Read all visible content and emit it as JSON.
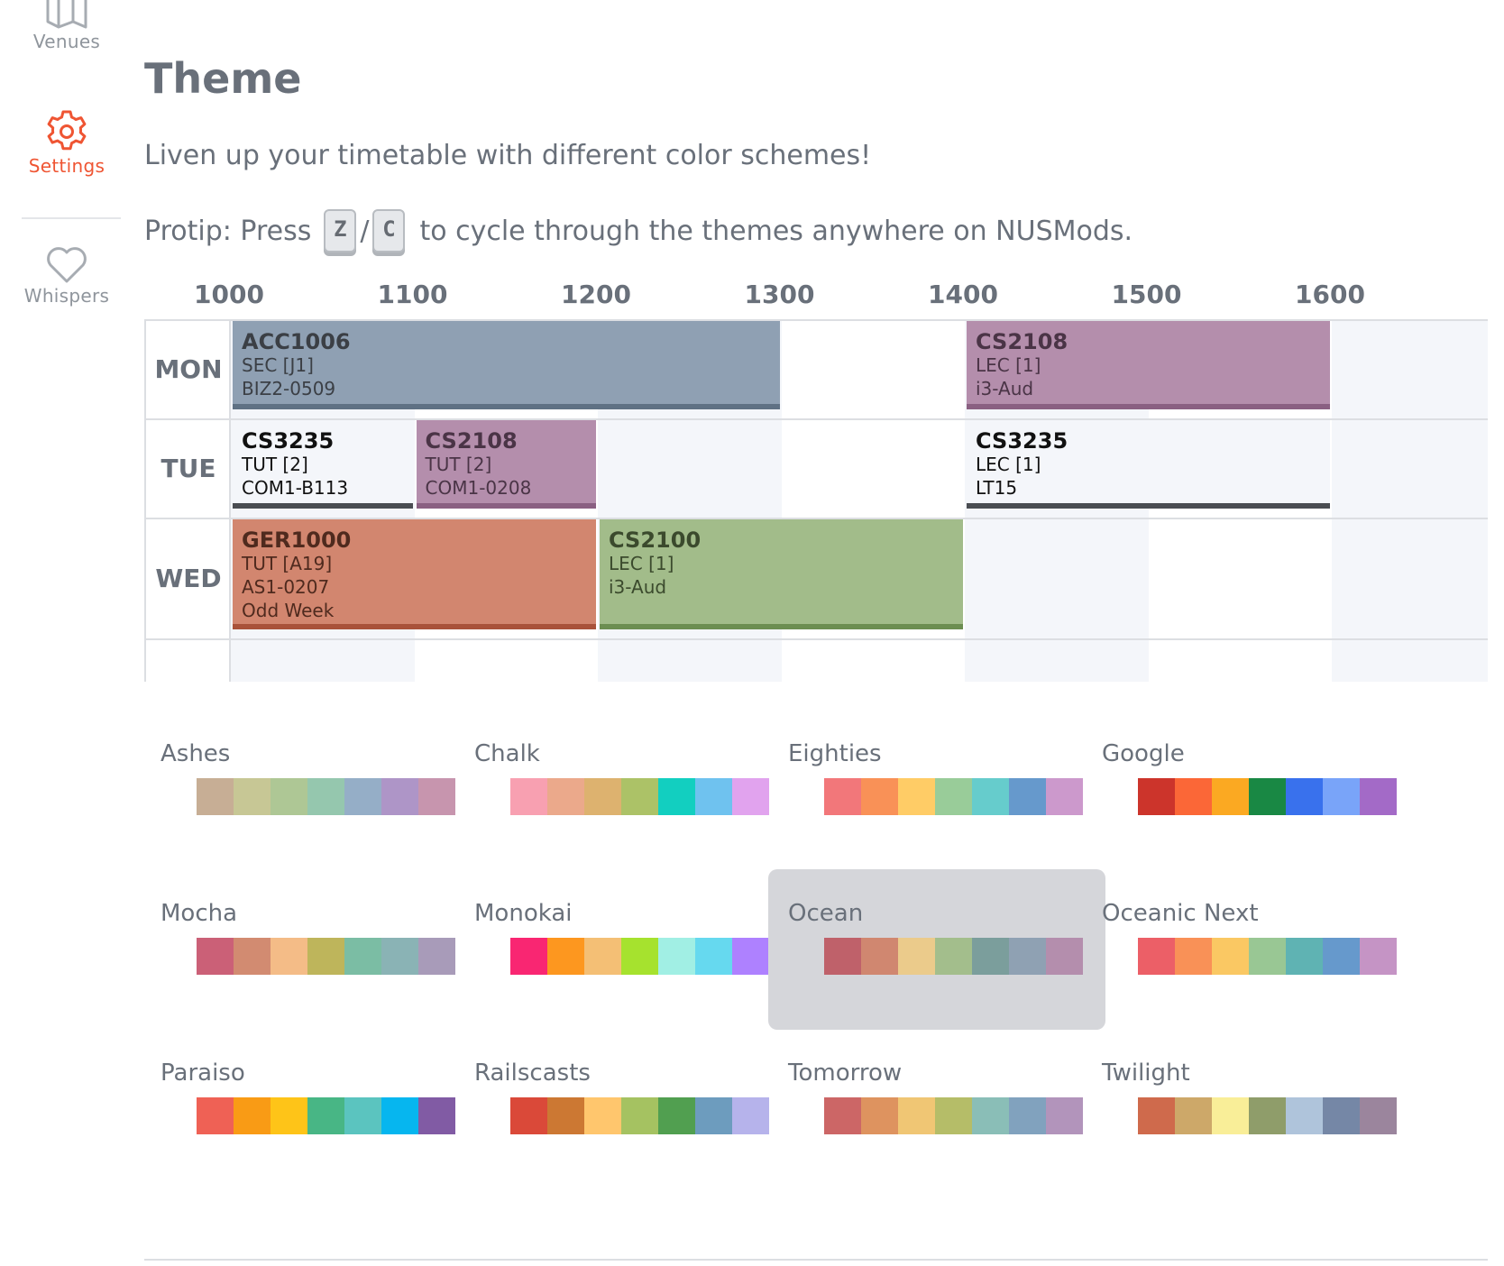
{
  "nav": {
    "venues_label": "Venues",
    "settings_label": "Settings",
    "whispers_label": "Whispers",
    "active_color": "#ef5533"
  },
  "header": {
    "title": "Theme",
    "intro": "Liven up your timetable with different color schemes!",
    "protip_pre": "Protip: Press",
    "key_prev": "Z",
    "key_sep": "/",
    "key_next": "C",
    "protip_post": "to cycle through the themes anywhere on NUSMods."
  },
  "timetable": {
    "hours": [
      "1000",
      "1100",
      "1200",
      "1300",
      "1400",
      "1500",
      "1600"
    ],
    "days": [
      "MON",
      "TUE",
      "WED"
    ],
    "lessons": [
      {
        "day": 0,
        "start": 1000,
        "end": 1300,
        "code": "ACC1006",
        "type": "SEC [J1]",
        "venue": "BIZ2-0509",
        "extra": "",
        "bg": "#8fa0b3",
        "bar": "#5f7184",
        "text": "#3b3f45"
      },
      {
        "day": 0,
        "start": 1400,
        "end": 1600,
        "code": "CS2108",
        "type": "LEC [1]",
        "venue": "i3-Aud",
        "extra": "",
        "bg": "#b48eac",
        "bar": "#8a6082",
        "text": "#4a3446"
      },
      {
        "day": 1,
        "start": 1000,
        "end": 1100,
        "code": "CS3235",
        "type": "TUT [2]",
        "venue": "COM1-B113",
        "extra": "",
        "bg": "#f4f6fa",
        "bar": "#4a4d52",
        "text": "#111111"
      },
      {
        "day": 1,
        "start": 1100,
        "end": 1200,
        "code": "CS2108",
        "type": "TUT [2]",
        "venue": "COM1-0208",
        "extra": "",
        "bg": "#b48eac",
        "bar": "#8a6082",
        "text": "#4a3446"
      },
      {
        "day": 1,
        "start": 1400,
        "end": 1600,
        "code": "CS3235",
        "type": "LEC [1]",
        "venue": "LT15",
        "extra": "",
        "bg": "#f4f6fa",
        "bar": "#4a4d52",
        "text": "#111111"
      },
      {
        "day": 2,
        "start": 1000,
        "end": 1200,
        "code": "GER1000",
        "type": "TUT [A19]",
        "venue": "AS1-0207",
        "extra": "Odd Week",
        "bg": "#d2866f",
        "bar": "#a9523a",
        "text": "#4f2a1e"
      },
      {
        "day": 2,
        "start": 1200,
        "end": 1400,
        "code": "CS2100",
        "type": "LEC [1]",
        "venue": "i3-Aud",
        "extra": "",
        "bg": "#a2bc8a",
        "bar": "#6c8e51",
        "text": "#3b4a2d"
      }
    ]
  },
  "themes": [
    {
      "name": "Ashes",
      "selected": false,
      "colors": [
        "#c7ae95",
        "#c7c795",
        "#aec795",
        "#95c7ae",
        "#95aec7",
        "#ae95c7",
        "#c795ae"
      ]
    },
    {
      "name": "Chalk",
      "selected": false,
      "colors": [
        "#f8a0b1",
        "#eba98b",
        "#ddb26f",
        "#acc267",
        "#12cfc0",
        "#6fc2ef",
        "#e1a3ee"
      ]
    },
    {
      "name": "Eighties",
      "selected": false,
      "colors": [
        "#f2777a",
        "#f99157",
        "#ffcc66",
        "#99cc99",
        "#66cccc",
        "#6699cc",
        "#cc99cc"
      ]
    },
    {
      "name": "Google",
      "selected": false,
      "colors": [
        "#cc342b",
        "#fb6737",
        "#fba922",
        "#198844",
        "#3971ed",
        "#79a4f9",
        "#a36ac7"
      ]
    },
    {
      "name": "Mocha",
      "selected": false,
      "colors": [
        "#cb6077",
        "#d28b71",
        "#f4bc87",
        "#beb55b",
        "#7bbda4",
        "#8ab3b5",
        "#a89bb9"
      ]
    },
    {
      "name": "Monokai",
      "selected": false,
      "colors": [
        "#f92672",
        "#fd971f",
        "#f4bf75",
        "#a6e22e",
        "#a1efe4",
        "#66d9ef",
        "#ae81ff"
      ]
    },
    {
      "name": "Ocean",
      "selected": true,
      "colors": [
        "#bf616a",
        "#d08770",
        "#ebcb8b",
        "#a3be8c",
        "#7b9e9c",
        "#8fa1b3",
        "#b48ead"
      ]
    },
    {
      "name": "Oceanic Next",
      "selected": false,
      "colors": [
        "#ec5f67",
        "#f99157",
        "#fac863",
        "#99c794",
        "#5fb3b3",
        "#6699cc",
        "#c594c5"
      ]
    },
    {
      "name": "Paraiso",
      "selected": false,
      "colors": [
        "#ef6155",
        "#f99b15",
        "#fec418",
        "#48b685",
        "#5bc4bf",
        "#06b6ef",
        "#815ba4"
      ]
    },
    {
      "name": "Railscasts",
      "selected": false,
      "colors": [
        "#da4939",
        "#cc7833",
        "#ffc66d",
        "#a5c261",
        "#519f50",
        "#6d9cbe",
        "#b6b3eb"
      ]
    },
    {
      "name": "Tomorrow",
      "selected": false,
      "colors": [
        "#cc6666",
        "#de935f",
        "#f0c674",
        "#b5bd68",
        "#8abeb7",
        "#81a2be",
        "#b294bb"
      ]
    },
    {
      "name": "Twilight",
      "selected": false,
      "colors": [
        "#cf6a4c",
        "#cda869",
        "#f9ee98",
        "#8f9d6a",
        "#afc4db",
        "#7587a6",
        "#9b859d"
      ]
    }
  ]
}
